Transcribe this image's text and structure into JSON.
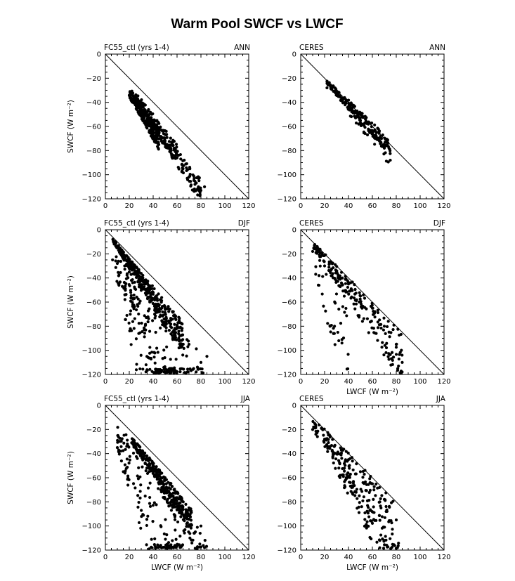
{
  "figure": {
    "title": "Warm Pool SWCF vs LWCF"
  },
  "chart_data": [
    {
      "type": "scatter",
      "left_label": "FC55_ctl (yrs 1-4)",
      "right_label": "ANN",
      "xlabel": "",
      "ylabel": "SWCF (W m⁻²)",
      "xlim": [
        0,
        120
      ],
      "ylim": [
        -120,
        0
      ],
      "xticks": [
        "0",
        "20",
        "40",
        "60",
        "80",
        "100",
        "120"
      ],
      "yticks": [
        "0",
        "−20",
        "−40",
        "−60",
        "−80",
        "−100",
        "−120"
      ],
      "reference_line": [
        [
          0,
          0
        ],
        [
          120,
          -120
        ]
      ],
      "clusters": [
        {
          "x": [
            20,
            45
          ],
          "ratio": [
            -1.78,
            -1.38
          ],
          "n": 240,
          "seed": 11
        },
        {
          "x": [
            25,
            60
          ],
          "ratio": [
            -1.55,
            -1.25
          ],
          "n": 120,
          "seed": 12
        },
        {
          "x": [
            40,
            80
          ],
          "ratio": [
            -1.55,
            -1.3
          ],
          "n": 110,
          "seed": 13
        }
      ],
      "x": [
        22,
        25,
        30,
        35,
        40,
        45,
        50,
        55,
        60,
        65,
        70,
        75,
        80,
        83
      ],
      "y": [
        -38,
        -42,
        -48,
        -55,
        -60,
        -65,
        -72,
        -80,
        -86,
        -95,
        -102,
        -108,
        -113,
        -110
      ]
    },
    {
      "type": "scatter",
      "left_label": "CERES",
      "right_label": "ANN",
      "xlabel": "",
      "ylabel": "",
      "xlim": [
        0,
        120
      ],
      "ylim": [
        -120,
        0
      ],
      "xticks": [
        "0",
        "20",
        "40",
        "60",
        "80",
        "100",
        "120"
      ],
      "yticks": [
        "0",
        "−20",
        "−40",
        "−60",
        "−80",
        "−100",
        "−120"
      ],
      "reference_line": [
        [
          0,
          0
        ],
        [
          120,
          -120
        ]
      ],
      "clusters": [
        {
          "x": [
            22,
            75
          ],
          "ratio": [
            -1.15,
            -0.95
          ],
          "n": 170,
          "seed": 21
        },
        {
          "x": [
            40,
            75
          ],
          "ratio": [
            -1.25,
            -1.05
          ],
          "n": 40,
          "seed": 22
        }
      ],
      "x": [
        22,
        30,
        40,
        50,
        60,
        70,
        75
      ],
      "y": [
        -28,
        -33,
        -45,
        -55,
        -65,
        -78,
        -88
      ]
    },
    {
      "type": "scatter",
      "left_label": "FC55_ctl (yrs 1-4)",
      "right_label": "DJF",
      "xlabel": "",
      "ylabel": "SWCF (W m⁻²)",
      "xlim": [
        0,
        120
      ],
      "ylim": [
        -120,
        0
      ],
      "xticks": [
        "0",
        "20",
        "40",
        "60",
        "80",
        "100",
        "120"
      ],
      "yticks": [
        "0",
        "−20",
        "−40",
        "−60",
        "−80",
        "−100",
        "−120"
      ],
      "reference_line": [
        [
          0,
          0
        ],
        [
          120,
          -120
        ]
      ],
      "clusters": [
        {
          "x": [
            6,
            65
          ],
          "ratio": [
            -1.62,
            -1.18
          ],
          "n": 320,
          "seed": 31
        },
        {
          "x": [
            8,
            60
          ],
          "ratio": [
            -4.5,
            -1.3
          ],
          "n": 150,
          "seed": 32
        },
        {
          "x": [
            15,
            85
          ],
          "ratio": [
            -3.0,
            -1.2
          ],
          "n": 120,
          "seed": 33
        }
      ],
      "x": [
        6,
        10,
        20,
        30,
        40,
        50,
        60,
        70,
        80,
        85
      ],
      "y": [
        -25,
        -28,
        -35,
        -42,
        -52,
        -65,
        -80,
        -95,
        -110,
        -105
      ]
    },
    {
      "type": "scatter",
      "left_label": "CERES",
      "right_label": "DJF",
      "xlabel": "LWCF (W m⁻²)",
      "ylabel": "",
      "xlim": [
        0,
        120
      ],
      "ylim": [
        -120,
        0
      ],
      "xticks": [
        "0",
        "20",
        "40",
        "60",
        "80",
        "100",
        "120"
      ],
      "yticks": [
        "0",
        "−20",
        "−40",
        "−60",
        "−80",
        "−100",
        "−120"
      ],
      "reference_line": [
        [
          0,
          0
        ],
        [
          120,
          -120
        ]
      ],
      "clusters": [
        {
          "x": [
            10,
            85
          ],
          "ratio": [
            -1.5,
            -1.0
          ],
          "n": 200,
          "seed": 41
        },
        {
          "x": [
            12,
            40
          ],
          "ratio": [
            -3.5,
            -1.5
          ],
          "n": 40,
          "seed": 42
        }
      ],
      "x": [
        10,
        20,
        30,
        40,
        50,
        60,
        70,
        80,
        85
      ],
      "y": [
        -18,
        -30,
        -35,
        -45,
        -55,
        -65,
        -80,
        -95,
        -110
      ]
    },
    {
      "type": "scatter",
      "left_label": "FC55_ctl (yrs 1-4)",
      "right_label": "JJA",
      "xlabel": "LWCF (W m⁻²)",
      "ylabel": "SWCF (W m⁻²)",
      "xlim": [
        0,
        120
      ],
      "ylim": [
        -120,
        0
      ],
      "xticks": [
        "0",
        "20",
        "40",
        "60",
        "80",
        "100",
        "120"
      ],
      "yticks": [
        "0",
        "−20",
        "−40",
        "−60",
        "−80",
        "−100",
        "−120"
      ],
      "reference_line": [
        [
          0,
          0
        ],
        [
          120,
          -120
        ]
      ],
      "clusters": [
        {
          "x": [
            22,
            72
          ],
          "ratio": [
            -1.45,
            -1.18
          ],
          "n": 300,
          "seed": 51
        },
        {
          "x": [
            10,
            65
          ],
          "ratio": [
            -3.5,
            -1.4
          ],
          "n": 150,
          "seed": 52
        },
        {
          "x": [
            45,
            85
          ],
          "ratio": [
            -1.6,
            -1.3
          ],
          "n": 60,
          "seed": 53
        }
      ],
      "x": [
        10,
        15,
        23,
        30,
        40,
        50,
        60,
        70,
        80,
        83
      ],
      "y": [
        -35,
        -55,
        -32,
        -38,
        -48,
        -60,
        -72,
        -85,
        -100,
        -118
      ]
    },
    {
      "type": "scatter",
      "left_label": "CERES",
      "right_label": "JJA",
      "xlabel": "LWCF (W m⁻²)",
      "ylabel": "",
      "xlim": [
        0,
        120
      ],
      "ylim": [
        -120,
        0
      ],
      "xticks": [
        "0",
        "20",
        "40",
        "60",
        "80",
        "100",
        "120"
      ],
      "yticks": [
        "0",
        "−20",
        "−40",
        "−60",
        "−80",
        "−100",
        "−120"
      ],
      "reference_line": [
        [
          0,
          0
        ],
        [
          120,
          -120
        ]
      ],
      "clusters": [
        {
          "x": [
            10,
            82
          ],
          "ratio": [
            -1.9,
            -0.98
          ],
          "n": 200,
          "seed": 61
        },
        {
          "x": [
            30,
            70
          ],
          "ratio": [
            -1.7,
            -1.2
          ],
          "n": 50,
          "seed": 62
        }
      ],
      "x": [
        10,
        20,
        30,
        40,
        50,
        60,
        70,
        80
      ],
      "y": [
        -20,
        -28,
        -40,
        -45,
        -55,
        -65,
        -78,
        -95
      ]
    }
  ]
}
